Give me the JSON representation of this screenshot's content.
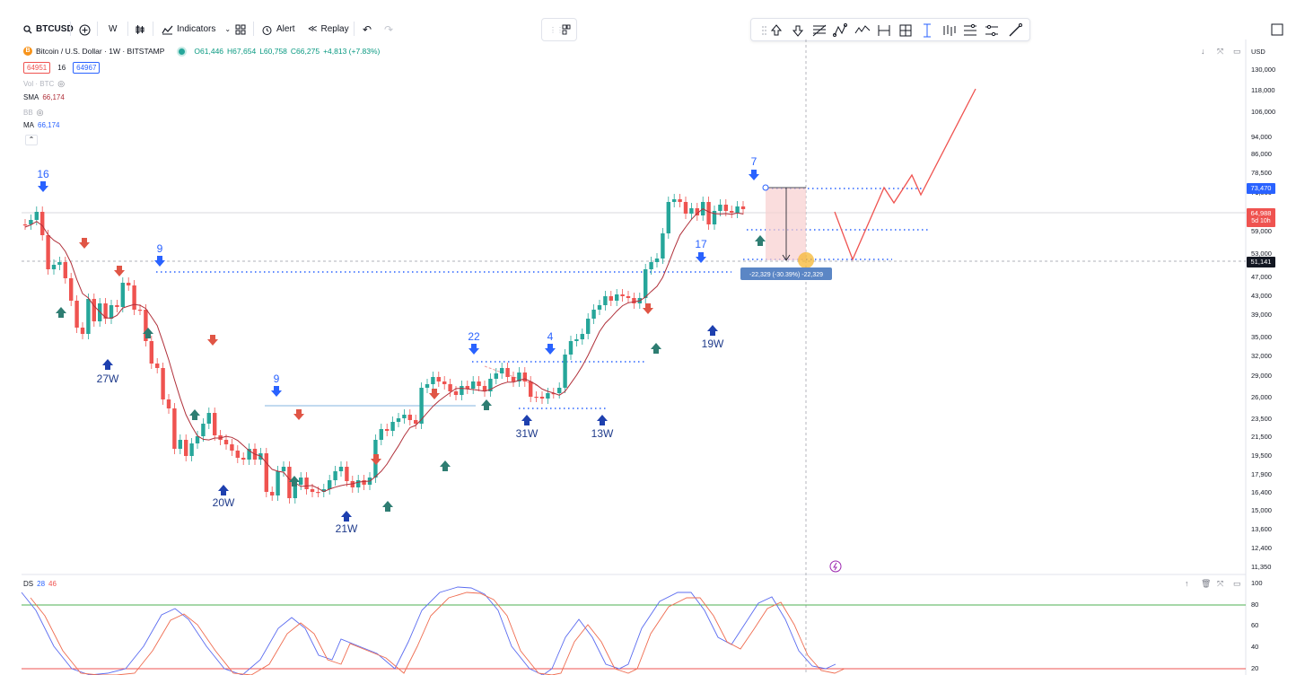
{
  "toolbar": {
    "symbol": "BTCUSD",
    "interval": "W",
    "indicators_label": "Indicators",
    "alert_label": "Alert",
    "replay_label": "Replay"
  },
  "legend": {
    "title": "Bitcoin / U.S. Dollar · 1W · BITSTAMP",
    "open": "O61,446",
    "high": "H67,654",
    "low": "L60,758",
    "close": "C66,275",
    "change": "+4,813 (+7.83%)",
    "bid": "64951",
    "spread": "16",
    "ask": "64967",
    "vol": "Vol · BTC",
    "sma_label": "SMA",
    "sma_value": "66,174",
    "bb_label": "BB",
    "ma_label": "MA",
    "ma_value": "66,174"
  },
  "price_axis": {
    "currency": "USD",
    "labels": [
      "130,000",
      "118,000",
      "106,000",
      "94,000",
      "86,000",
      "78,500",
      "71,000",
      "59,000",
      "53,000",
      "47,000",
      "43,000",
      "39,000",
      "35,000",
      "32,000",
      "29,000",
      "26,000",
      "23,500",
      "21,500",
      "19,500",
      "17,900",
      "16,400",
      "15,000",
      "13,600",
      "12,400",
      "11,350"
    ],
    "tag_high": "73,470",
    "tag_current": "64,988",
    "tag_countdown": "5d 10h",
    "tag_cursor": "51,141"
  },
  "measure": {
    "label": "-22,329 (-30.39%) -22,329"
  },
  "annotations": {
    "counts": [
      "16",
      "9",
      "9",
      "22",
      "4",
      "17",
      "7"
    ],
    "week_labels": [
      "27W",
      "20W",
      "21W",
      "31W",
      "13W",
      "19W"
    ]
  },
  "oscillator": {
    "name": "DS",
    "k": "28",
    "d": "46",
    "levels": [
      "100",
      "80",
      "60",
      "40",
      "20"
    ]
  },
  "colors": {
    "up": "#26a69a",
    "down": "#ef5350",
    "up_arrow": "#2e7d72",
    "down_arrow": "#e05545",
    "count_blue": "#2962ff",
    "dotted": "#2962ff",
    "ma_line": "#b0303a",
    "projection": "#ef5350"
  }
}
